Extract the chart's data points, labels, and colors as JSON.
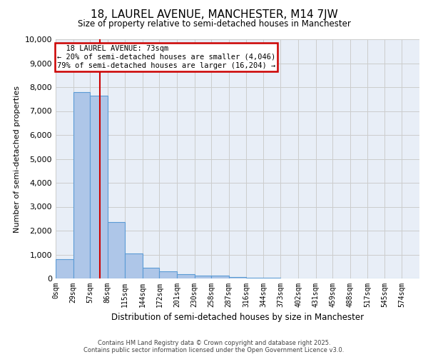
{
  "title": "18, LAUREL AVENUE, MANCHESTER, M14 7JW",
  "subtitle": "Size of property relative to semi-detached houses in Manchester",
  "xlabel": "Distribution of semi-detached houses by size in Manchester",
  "ylabel": "Number of semi-detached properties",
  "bar_labels": [
    "0sqm",
    "29sqm",
    "57sqm",
    "86sqm",
    "115sqm",
    "144sqm",
    "172sqm",
    "201sqm",
    "230sqm",
    "258sqm",
    "287sqm",
    "316sqm",
    "344sqm",
    "373sqm",
    "402sqm",
    "431sqm",
    "459sqm",
    "488sqm",
    "517sqm",
    "545sqm",
    "574sqm"
  ],
  "bar_values": [
    800,
    7800,
    7650,
    2350,
    1050,
    450,
    290,
    185,
    120,
    110,
    55,
    30,
    15,
    8,
    5,
    3,
    2,
    1,
    1,
    0,
    0
  ],
  "bar_color": "#aec6e8",
  "bar_edge_color": "#5b9bd5",
  "property_label": "18 LAUREL AVENUE: 73sqm",
  "smaller_pct": "20%",
  "smaller_count": "4,046",
  "larger_pct": "79%",
  "larger_count": "16,204",
  "vline_x": 73,
  "vline_color": "#cc0000",
  "annotation_box_color": "#cc0000",
  "ylim": [
    0,
    10000
  ],
  "yticks": [
    0,
    1000,
    2000,
    3000,
    4000,
    5000,
    6000,
    7000,
    8000,
    9000,
    10000
  ],
  "grid_color": "#cccccc",
  "plot_bg_color": "#e8eef7",
  "footer_line1": "Contains HM Land Registry data © Crown copyright and database right 2025.",
  "footer_line2": "Contains public sector information licensed under the Open Government Licence v3.0."
}
